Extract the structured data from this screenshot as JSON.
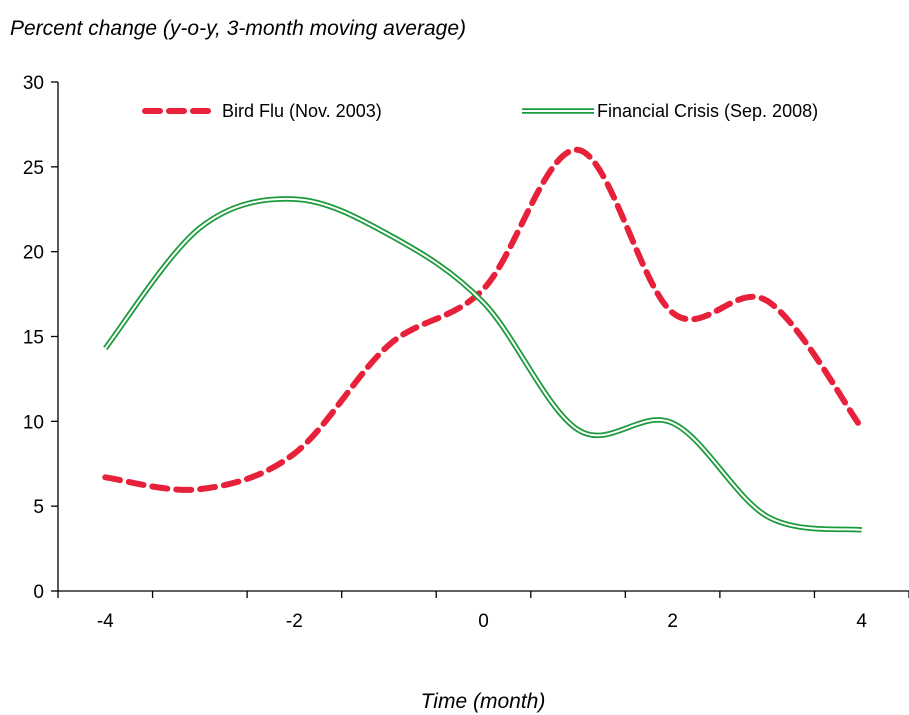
{
  "chart_data": {
    "type": "line",
    "ylabel": "Percent change (y-o-y, 3-month moving average)",
    "xlabel": "Time (month)",
    "ylim": [
      0,
      30
    ],
    "y_ticks": [
      0,
      5,
      10,
      15,
      20,
      25,
      30
    ],
    "xlim": [
      -4.5,
      4.5
    ],
    "x_ticks": [
      -4,
      -2,
      0,
      2,
      4
    ],
    "grid": false,
    "legend_position": "top",
    "x": [
      -4,
      -3,
      -2,
      -1,
      0,
      1,
      2,
      3,
      4
    ],
    "series": [
      {
        "name": "Bird Flu (Nov. 2003)",
        "values": [
          6.7,
          6.0,
          8.1,
          14.5,
          17.8,
          26.0,
          16.4,
          17.1,
          9.6
        ],
        "color": "#e8213a",
        "style": "dashed"
      },
      {
        "name": "Financial Crisis (Sep. 2008)",
        "values": [
          14.3,
          21.4,
          23.1,
          21.0,
          17.0,
          9.5,
          9.9,
          4.4,
          3.6
        ],
        "color": "#1a9a3a",
        "style": "double"
      }
    ]
  }
}
